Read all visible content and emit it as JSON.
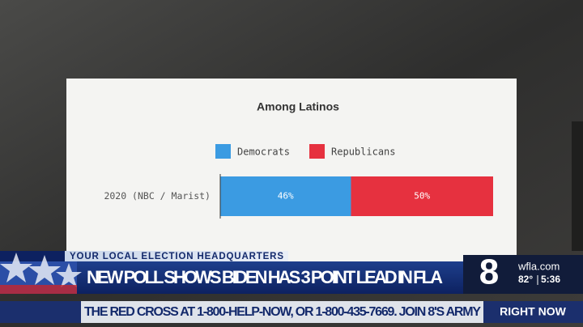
{
  "chart_data": {
    "type": "stacked-bar-horizontal",
    "title": "Among Latinos",
    "categories": [
      "2020 (NBC / Marist)"
    ],
    "series": [
      {
        "name": "Democrats",
        "color": "#3b9be2",
        "values": [
          46
        ],
        "value_labels": [
          "46%"
        ]
      },
      {
        "name": "Republicans",
        "color": "#e6313f",
        "values": [
          50
        ],
        "value_labels": [
          "50%"
        ]
      }
    ]
  },
  "lower_third": {
    "tag": "YOUR LOCAL ELECTION HEADQUARTERS",
    "headline": "NEW POLL SHOWS BIDEN HAS 3 POINT LEAD IN FLA",
    "channel": "8",
    "website": "wfla.com",
    "temperature": "82°",
    "time": "5:36",
    "ticker": "THE RED CROSS AT 1-800-HELP-NOW, OR 1-800-435-7669. JOIN 8'S ARMY",
    "ticker_badge": "RIGHT NOW"
  }
}
